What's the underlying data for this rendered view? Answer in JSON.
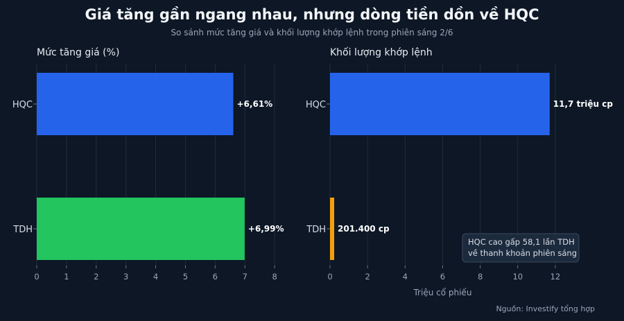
{
  "header": {
    "title": "Giá tăng gần ngang nhau, nhưng dòng tiền dồn về HQC",
    "subtitle": "So sánh mức tăng giá và khối lượng khớp lệnh trong phiên sáng 2/6"
  },
  "footer": {
    "source": "Nguồn: Investify tổng hợp"
  },
  "colors": {
    "background": "#0d1726",
    "hqc_bar": "#2563eb",
    "tdh_price_bar": "#22c55e",
    "tdh_volume_bar": "#f59e0b",
    "grid": "#1f2c3d"
  },
  "chart_data": [
    {
      "type": "bar",
      "orientation": "horizontal",
      "title": "Mức tăng giá (%)",
      "xlabel": "",
      "ylabel": "",
      "categories": [
        "HQC",
        "TDH"
      ],
      "values": [
        6.61,
        6.99
      ],
      "data_labels": [
        "+6,61%",
        "+6,99%"
      ],
      "bar_colors": [
        "#2563eb",
        "#22c55e"
      ],
      "xlim": [
        0,
        8.3
      ],
      "xticks": [
        0,
        1,
        2,
        3,
        4,
        5,
        6,
        7,
        8
      ],
      "grid": "vertical"
    },
    {
      "type": "bar",
      "orientation": "horizontal",
      "title": "Khối lượng khớp lệnh",
      "xlabel": "Triệu cổ phiếu",
      "ylabel": "",
      "categories": [
        "HQC",
        "TDH"
      ],
      "values": [
        11.7,
        0.2014
      ],
      "data_labels": [
        "11,7 triệu cp",
        "201.400 cp"
      ],
      "bar_colors": [
        "#2563eb",
        "#f59e0b"
      ],
      "xlim": [
        0,
        13
      ],
      "xticks": [
        0,
        2,
        4,
        6,
        8,
        10,
        12
      ],
      "grid": "vertical",
      "annotation": [
        "HQC cao gấp 58,1 lần TDH",
        "về thanh khoản phiên sáng"
      ]
    }
  ]
}
